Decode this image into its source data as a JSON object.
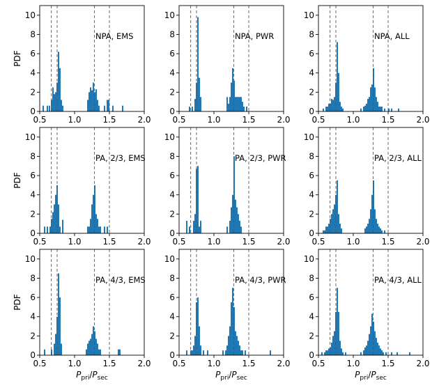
{
  "figure": {
    "background": "#ffffff",
    "bar_color": "#1f77b4",
    "line_color": "#555555"
  },
  "chart_data": [
    {
      "type": "bar",
      "annotation": "NPA, EMS",
      "xlim": [
        0.5,
        2.0
      ],
      "ylim": [
        0,
        11
      ],
      "xticks": [
        0.5,
        1.0,
        1.5,
        2.0
      ],
      "yticks": [
        0,
        2,
        4,
        6,
        8,
        10
      ],
      "ylabel": "PDF",
      "xlabel": "",
      "bin_width": 0.02,
      "ref_lines": [
        0.667,
        0.75,
        1.286,
        1.5
      ],
      "bins": [
        [
          0.55,
          0.6
        ],
        [
          0.61,
          0.6
        ],
        [
          0.64,
          0.6
        ],
        [
          0.67,
          1.2
        ],
        [
          0.69,
          2.5
        ],
        [
          0.71,
          1.8
        ],
        [
          0.73,
          2.0
        ],
        [
          0.75,
          3.0
        ],
        [
          0.77,
          6.2
        ],
        [
          0.79,
          4.5
        ],
        [
          0.81,
          1.2
        ],
        [
          0.83,
          0.6
        ],
        [
          1.19,
          1.2
        ],
        [
          1.21,
          2.0
        ],
        [
          1.23,
          2.5
        ],
        [
          1.25,
          2.2
        ],
        [
          1.27,
          3.0
        ],
        [
          1.29,
          2.0
        ],
        [
          1.31,
          2.3
        ],
        [
          1.33,
          1.2
        ],
        [
          1.35,
          0.6
        ],
        [
          1.43,
          0.6
        ],
        [
          1.47,
          1.2
        ],
        [
          1.49,
          1.2
        ],
        [
          1.55,
          0.6
        ],
        [
          1.69,
          0.6
        ]
      ]
    },
    {
      "type": "bar",
      "annotation": "NPA, PWR",
      "xlim": [
        0.5,
        2.0
      ],
      "ylim": [
        0,
        11
      ],
      "xticks": [
        0.5,
        1.0,
        1.5,
        2.0
      ],
      "yticks": [
        0,
        2,
        4,
        6,
        8,
        10
      ],
      "ylabel": "",
      "xlabel": "",
      "bin_width": 0.02,
      "ref_lines": [
        0.667,
        0.75,
        1.286,
        1.5
      ],
      "bins": [
        [
          0.65,
          0.5
        ],
        [
          0.69,
          0.5
        ],
        [
          0.73,
          1.3
        ],
        [
          0.75,
          3.0
        ],
        [
          0.77,
          9.8
        ],
        [
          0.79,
          3.5
        ],
        [
          0.81,
          1.5
        ],
        [
          1.19,
          1.5
        ],
        [
          1.21,
          0.8
        ],
        [
          1.23,
          1.5
        ],
        [
          1.25,
          3.0
        ],
        [
          1.27,
          4.5
        ],
        [
          1.29,
          3.2
        ],
        [
          1.31,
          1.5
        ],
        [
          1.33,
          1.5
        ],
        [
          1.35,
          1.5
        ],
        [
          1.37,
          1.5
        ],
        [
          1.39,
          1.5
        ],
        [
          1.41,
          1.0
        ],
        [
          1.43,
          0.5
        ],
        [
          1.47,
          0.5
        ]
      ]
    },
    {
      "type": "bar",
      "annotation": "NPA, ALL",
      "xlim": [
        0.5,
        2.0
      ],
      "ylim": [
        0,
        11
      ],
      "xticks": [
        0.5,
        1.0,
        1.5,
        2.0
      ],
      "yticks": [
        0,
        2,
        4,
        6,
        8,
        10
      ],
      "ylabel": "",
      "xlabel": "",
      "bin_width": 0.02,
      "ref_lines": [
        0.667,
        0.75,
        1.286,
        1.5
      ],
      "bins": [
        [
          0.57,
          0.3
        ],
        [
          0.61,
          0.5
        ],
        [
          0.63,
          0.5
        ],
        [
          0.65,
          0.8
        ],
        [
          0.67,
          0.8
        ],
        [
          0.69,
          1.3
        ],
        [
          0.71,
          1.2
        ],
        [
          0.73,
          1.5
        ],
        [
          0.75,
          3.0
        ],
        [
          0.77,
          7.2
        ],
        [
          0.79,
          4.0
        ],
        [
          0.81,
          1.0
        ],
        [
          0.83,
          0.5
        ],
        [
          0.85,
          0.3
        ],
        [
          1.11,
          0.3
        ],
        [
          1.15,
          0.5
        ],
        [
          1.17,
          0.6
        ],
        [
          1.19,
          0.8
        ],
        [
          1.21,
          1.3
        ],
        [
          1.23,
          1.5
        ],
        [
          1.25,
          2.5
        ],
        [
          1.27,
          2.8
        ],
        [
          1.29,
          4.5
        ],
        [
          1.31,
          2.5
        ],
        [
          1.33,
          1.5
        ],
        [
          1.35,
          1.0
        ],
        [
          1.37,
          0.5
        ],
        [
          1.39,
          0.5
        ],
        [
          1.41,
          0.5
        ],
        [
          1.45,
          0.3
        ],
        [
          1.51,
          0.3
        ],
        [
          1.55,
          0.3
        ],
        [
          1.65,
          0.3
        ]
      ]
    },
    {
      "type": "bar",
      "annotation": "PA, 2/3, EMS",
      "xlim": [
        0.5,
        2.0
      ],
      "ylim": [
        0,
        11
      ],
      "xticks": [
        0.5,
        1.0,
        1.5,
        2.0
      ],
      "yticks": [
        0,
        2,
        4,
        6,
        8,
        10
      ],
      "ylabel": "PDF",
      "xlabel": "",
      "bin_width": 0.02,
      "ref_lines": [
        0.667,
        0.75,
        1.286,
        1.5
      ],
      "bins": [
        [
          0.57,
          0.7
        ],
        [
          0.61,
          0.7
        ],
        [
          0.65,
          0.7
        ],
        [
          0.67,
          1.5
        ],
        [
          0.69,
          2.2
        ],
        [
          0.71,
          3.0
        ],
        [
          0.73,
          4.0
        ],
        [
          0.75,
          5.0
        ],
        [
          0.77,
          3.0
        ],
        [
          0.79,
          0.7
        ],
        [
          0.83,
          1.4
        ],
        [
          1.19,
          0.7
        ],
        [
          1.21,
          0.7
        ],
        [
          1.23,
          1.5
        ],
        [
          1.25,
          3.0
        ],
        [
          1.27,
          4.0
        ],
        [
          1.29,
          5.0
        ],
        [
          1.31,
          2.0
        ],
        [
          1.33,
          1.5
        ],
        [
          1.35,
          0.7
        ],
        [
          1.37,
          0.7
        ],
        [
          1.43,
          0.7
        ],
        [
          1.47,
          0.7
        ]
      ]
    },
    {
      "type": "bar",
      "annotation": "PA, 2/3, PWR",
      "xlim": [
        0.5,
        2.0
      ],
      "ylim": [
        0,
        11
      ],
      "xticks": [
        0.5,
        1.0,
        1.5,
        2.0
      ],
      "yticks": [
        0,
        2,
        4,
        6,
        8,
        10
      ],
      "ylabel": "",
      "xlabel": "",
      "bin_width": 0.02,
      "ref_lines": [
        0.667,
        0.75,
        1.286,
        1.5
      ],
      "bins": [
        [
          0.61,
          1.3
        ],
        [
          0.65,
          0.7
        ],
        [
          0.71,
          1.3
        ],
        [
          0.73,
          2.0
        ],
        [
          0.75,
          6.7
        ],
        [
          0.77,
          7.0
        ],
        [
          0.79,
          0.7
        ],
        [
          0.81,
          1.3
        ],
        [
          1.19,
          0.7
        ],
        [
          1.23,
          1.3
        ],
        [
          1.25,
          2.7
        ],
        [
          1.27,
          4.0
        ],
        [
          1.29,
          8.0
        ],
        [
          1.31,
          3.5
        ],
        [
          1.33,
          2.7
        ],
        [
          1.35,
          2.0
        ],
        [
          1.37,
          1.3
        ],
        [
          1.39,
          0.7
        ]
      ]
    },
    {
      "type": "bar",
      "annotation": "PA, 2/3, ALL",
      "xlim": [
        0.5,
        2.0
      ],
      "ylim": [
        0,
        11
      ],
      "xticks": [
        0.5,
        1.0,
        1.5,
        2.0
      ],
      "yticks": [
        0,
        2,
        4,
        6,
        8,
        10
      ],
      "ylabel": "",
      "xlabel": "",
      "bin_width": 0.02,
      "ref_lines": [
        0.667,
        0.75,
        1.286,
        1.5
      ],
      "bins": [
        [
          0.57,
          0.3
        ],
        [
          0.59,
          0.3
        ],
        [
          0.61,
          0.7
        ],
        [
          0.63,
          0.7
        ],
        [
          0.65,
          1.0
        ],
        [
          0.67,
          1.5
        ],
        [
          0.69,
          2.0
        ],
        [
          0.71,
          2.5
        ],
        [
          0.73,
          3.0
        ],
        [
          0.75,
          4.0
        ],
        [
          0.77,
          5.5
        ],
        [
          0.79,
          2.0
        ],
        [
          0.81,
          1.0
        ],
        [
          0.83,
          0.5
        ],
        [
          1.17,
          0.5
        ],
        [
          1.19,
          0.7
        ],
        [
          1.21,
          1.0
        ],
        [
          1.23,
          1.5
        ],
        [
          1.25,
          2.5
        ],
        [
          1.27,
          4.0
        ],
        [
          1.29,
          5.5
        ],
        [
          1.31,
          2.5
        ],
        [
          1.33,
          1.5
        ],
        [
          1.35,
          1.0
        ],
        [
          1.37,
          0.7
        ],
        [
          1.39,
          0.5
        ],
        [
          1.41,
          0.3
        ],
        [
          1.45,
          0.3
        ]
      ]
    },
    {
      "type": "bar",
      "annotation": "PA, 4/3, EMS",
      "xlim": [
        0.5,
        2.0
      ],
      "ylim": [
        0,
        11
      ],
      "xticks": [
        0.5,
        1.0,
        1.5,
        2.0
      ],
      "yticks": [
        0,
        2,
        4,
        6,
        8,
        10
      ],
      "ylabel": "PDF",
      "xlabel": "Ppri/Psec",
      "bin_width": 0.02,
      "ref_lines": [
        0.667,
        0.75,
        1.286,
        1.5
      ],
      "bins": [
        [
          0.57,
          0.6
        ],
        [
          0.67,
          0.6
        ],
        [
          0.71,
          1.2
        ],
        [
          0.73,
          2.2
        ],
        [
          0.75,
          4.0
        ],
        [
          0.77,
          8.5
        ],
        [
          0.79,
          6.0
        ],
        [
          0.81,
          1.2
        ],
        [
          1.17,
          0.6
        ],
        [
          1.19,
          1.2
        ],
        [
          1.21,
          1.5
        ],
        [
          1.23,
          1.7
        ],
        [
          1.25,
          2.2
        ],
        [
          1.27,
          3.0
        ],
        [
          1.29,
          2.5
        ],
        [
          1.31,
          1.7
        ],
        [
          1.33,
          1.2
        ],
        [
          1.35,
          0.6
        ],
        [
          1.37,
          0.6
        ],
        [
          1.63,
          0.6
        ],
        [
          1.65,
          0.6
        ]
      ]
    },
    {
      "type": "bar",
      "annotation": "PA, 4/3, PWR",
      "xlim": [
        0.5,
        2.0
      ],
      "ylim": [
        0,
        11
      ],
      "xticks": [
        0.5,
        1.0,
        1.5,
        2.0
      ],
      "yticks": [
        0,
        2,
        4,
        6,
        8,
        10
      ],
      "ylabel": "",
      "xlabel": "Ppri/Psec",
      "bin_width": 0.02,
      "ref_lines": [
        0.667,
        0.75,
        1.286,
        1.5
      ],
      "bins": [
        [
          0.61,
          0.5
        ],
        [
          0.67,
          0.5
        ],
        [
          0.69,
          0.5
        ],
        [
          0.71,
          1.0
        ],
        [
          0.73,
          2.0
        ],
        [
          0.75,
          5.5
        ],
        [
          0.77,
          6.0
        ],
        [
          0.79,
          3.0
        ],
        [
          0.81,
          1.0
        ],
        [
          0.85,
          0.5
        ],
        [
          0.91,
          0.5
        ],
        [
          1.13,
          0.5
        ],
        [
          1.17,
          0.5
        ],
        [
          1.19,
          1.0
        ],
        [
          1.21,
          2.0
        ],
        [
          1.23,
          3.0
        ],
        [
          1.25,
          5.5
        ],
        [
          1.27,
          7.0
        ],
        [
          1.29,
          5.0
        ],
        [
          1.31,
          2.5
        ],
        [
          1.33,
          2.0
        ],
        [
          1.35,
          1.5
        ],
        [
          1.37,
          1.0
        ],
        [
          1.39,
          0.5
        ],
        [
          1.41,
          0.5
        ],
        [
          1.45,
          0.5
        ],
        [
          1.81,
          0.5
        ]
      ]
    },
    {
      "type": "bar",
      "annotation": "PA, 4/3, ALL",
      "xlim": [
        0.5,
        2.0
      ],
      "ylim": [
        0,
        11
      ],
      "xticks": [
        0.5,
        1.0,
        1.5,
        2.0
      ],
      "yticks": [
        0,
        2,
        4,
        6,
        8,
        10
      ],
      "ylabel": "",
      "xlabel": "Ppri/Psec",
      "bin_width": 0.02,
      "ref_lines": [
        0.667,
        0.75,
        1.286,
        1.5
      ],
      "bins": [
        [
          0.55,
          0.3
        ],
        [
          0.59,
          0.3
        ],
        [
          0.61,
          0.5
        ],
        [
          0.63,
          0.5
        ],
        [
          0.65,
          0.7
        ],
        [
          0.67,
          0.8
        ],
        [
          0.69,
          1.3
        ],
        [
          0.71,
          2.0
        ],
        [
          0.73,
          2.5
        ],
        [
          0.75,
          4.5
        ],
        [
          0.77,
          7.0
        ],
        [
          0.79,
          4.5
        ],
        [
          0.81,
          1.5
        ],
        [
          0.83,
          0.7
        ],
        [
          0.85,
          0.3
        ],
        [
          0.89,
          0.3
        ],
        [
          1.11,
          0.3
        ],
        [
          1.15,
          0.5
        ],
        [
          1.17,
          0.8
        ],
        [
          1.19,
          1.0
        ],
        [
          1.21,
          1.5
        ],
        [
          1.23,
          2.2
        ],
        [
          1.25,
          3.0
        ],
        [
          1.27,
          4.3
        ],
        [
          1.29,
          3.5
        ],
        [
          1.31,
          2.5
        ],
        [
          1.33,
          1.8
        ],
        [
          1.35,
          1.3
        ],
        [
          1.37,
          1.0
        ],
        [
          1.39,
          0.7
        ],
        [
          1.41,
          0.5
        ],
        [
          1.43,
          0.3
        ],
        [
          1.47,
          0.3
        ],
        [
          1.55,
          0.3
        ],
        [
          1.63,
          0.3
        ],
        [
          1.81,
          0.3
        ]
      ]
    }
  ]
}
